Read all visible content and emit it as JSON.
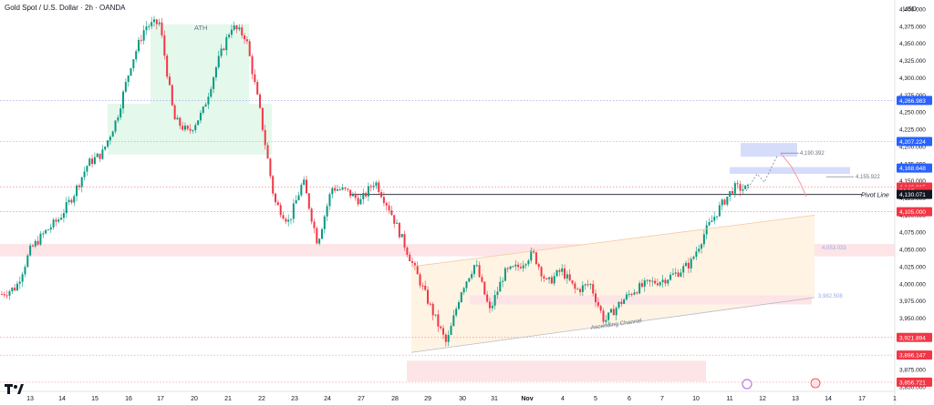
{
  "header": {
    "title": "Gold Spot / U.S. Dollar · 2h · OANDA"
  },
  "colors": {
    "up": "#089981",
    "down": "#f23645",
    "grid_dotted": "#c8ccd6",
    "demand_zone": "#fde4e6",
    "ath_zone": "#e5f8ec",
    "channel_fill": "#fff3e3",
    "blue_zone": "#d6ddfb",
    "price_blue": "#2962ff",
    "price_red": "#f23645",
    "price_black": "#131722"
  },
  "chart_data": {
    "type": "candlestick",
    "title": "Gold Spot / U.S. Dollar · 2h · OANDA",
    "y_unit": "USD",
    "ylim": [
      3850,
      4405
    ],
    "y_ticks": [
      "4,400.000",
      "4,375.000",
      "4,350.000",
      "4,325.000",
      "4,300.000",
      "4,275.000",
      "4,250.000",
      "4,225.000",
      "4,200.000",
      "4,175.000",
      "4,150.000",
      "4,125.000",
      "4,100.000",
      "4,075.000",
      "4,050.000",
      "4,025.000",
      "4,000.000",
      "3,975.000",
      "3,950.000",
      "3,925.000",
      "3,900.000",
      "3,875.000",
      "3,850.000"
    ],
    "x_ticks": [
      "13",
      "14",
      "15",
      "16",
      "17",
      "20",
      "21",
      "22",
      "23",
      "24",
      "27",
      "28",
      "29",
      "30",
      "31",
      "Nov",
      "4",
      "5",
      "6",
      "7",
      "10",
      "11",
      "12",
      "13",
      "14",
      "17",
      "1"
    ],
    "price_path": [
      [
        "13",
        3985
      ],
      [
        "13",
        3995
      ],
      [
        "14",
        4050
      ],
      [
        "14",
        4075
      ],
      [
        "15",
        4095
      ],
      [
        "15",
        4130
      ],
      [
        "16",
        4175
      ],
      [
        "16",
        4190
      ],
      [
        "17",
        4240
      ],
      [
        "17",
        4320
      ],
      [
        "17",
        4375
      ],
      [
        "17",
        4380
      ],
      [
        "20",
        4240
      ],
      [
        "20",
        4220
      ],
      [
        "20",
        4250
      ],
      [
        "21",
        4320
      ],
      [
        "21",
        4375
      ],
      [
        "21",
        4360
      ],
      [
        "22",
        4250
      ],
      [
        "22",
        4120
      ],
      [
        "22",
        4090
      ],
      [
        "22",
        4150
      ],
      [
        "23",
        4060
      ],
      [
        "23",
        4140
      ],
      [
        "24",
        4135
      ],
      [
        "24",
        4120
      ],
      [
        "24",
        4150
      ],
      [
        "27",
        4110
      ],
      [
        "27",
        4060
      ],
      [
        "28",
        4010
      ],
      [
        "28",
        3960
      ],
      [
        "28",
        3912
      ],
      [
        "29",
        3990
      ],
      [
        "29",
        4030
      ],
      [
        "30",
        3960
      ],
      [
        "30",
        4015
      ],
      [
        "31",
        4025
      ],
      [
        "31",
        4045
      ],
      [
        "Nov",
        4000
      ],
      [
        "Nov",
        4020
      ],
      [
        "4",
        3990
      ],
      [
        "4",
        4000
      ],
      [
        "5",
        3945
      ],
      [
        "5",
        3970
      ],
      [
        "6",
        3990
      ],
      [
        "6",
        4000
      ],
      [
        "7",
        4005
      ],
      [
        "7",
        4015
      ],
      [
        "10",
        4030
      ],
      [
        "10",
        4075
      ],
      [
        "11",
        4110
      ],
      [
        "11",
        4140
      ],
      [
        "11",
        4138
      ]
    ],
    "price_labels": [
      {
        "value": 4266.983,
        "text": "4,266.983",
        "color": "blue"
      },
      {
        "value": 4207.224,
        "text": "4,207.224",
        "color": "blue"
      },
      {
        "value": 4168.648,
        "text": "4,168.648",
        "color": "blue"
      },
      {
        "value": 4140.915,
        "text": "4,140.915",
        "color": "red"
      },
      {
        "value": 4135.5,
        "text": "24:13",
        "color": "red"
      },
      {
        "value": 4130.071,
        "text": "4,130.071",
        "color": "black"
      },
      {
        "value": 4105.0,
        "text": "4,105.000",
        "color": "red"
      },
      {
        "value": 3921.894,
        "text": "3,921.894",
        "color": "red"
      },
      {
        "value": 3896.147,
        "text": "3,896.147",
        "color": "red"
      },
      {
        "value": 3856.721,
        "text": "3,856.721",
        "color": "red"
      }
    ],
    "horizontal_levels": [
      4266.983,
      4207.224,
      4140.915,
      4105.0,
      3921.894,
      3896.147,
      3856.721
    ],
    "pivot_level": 4130.071,
    "annotations": {
      "ath": "ATH",
      "pivot_line": "Pivot Line",
      "ascending_channel": "Ascending Channel",
      "target_high": "4,190.392",
      "target_mid": "4,155.922",
      "channel_upper": "4,053.033",
      "channel_lower": "3,982.508"
    },
    "projection": [
      [
        4138,
        4160
      ],
      [
        4170,
        4150
      ],
      [
        4175,
        4140
      ],
      [
        4190,
        4120
      ]
    ],
    "legend": "none",
    "grid": false
  }
}
